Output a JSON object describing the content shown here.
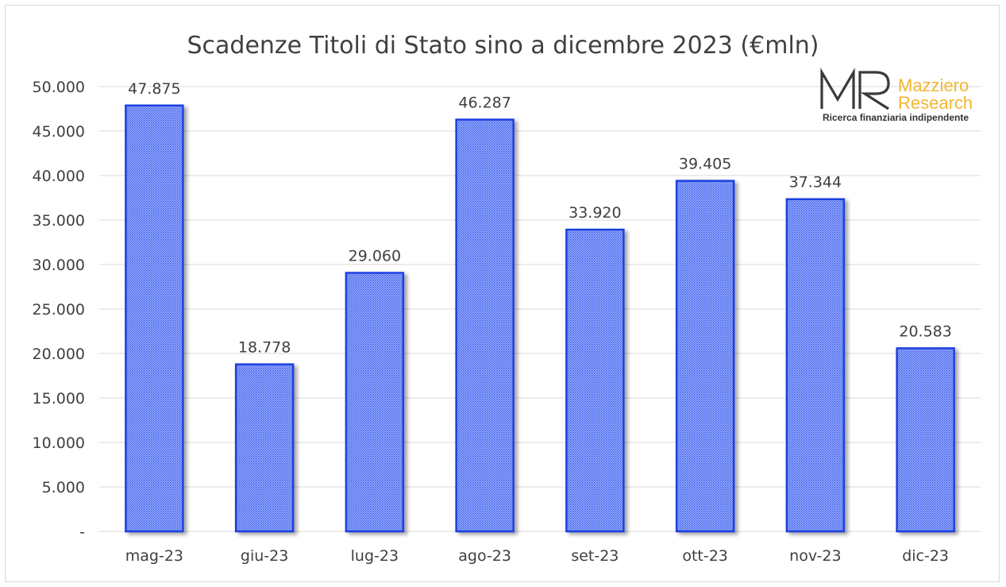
{
  "chart_data": {
    "type": "bar",
    "title": "Scadenze Titoli di Stato sino a dicembre 2023 (€mln)",
    "categories": [
      "mag-23",
      "giu-23",
      "lug-23",
      "ago-23",
      "set-23",
      "ott-23",
      "nov-23",
      "dic-23"
    ],
    "values": [
      47875,
      18778,
      29060,
      46287,
      33920,
      39405,
      37344,
      20583
    ],
    "value_labels": [
      "47.875",
      "18.778",
      "29.060",
      "46.287",
      "33.920",
      "39.405",
      "37.344",
      "20.583"
    ],
    "ylim": [
      0,
      50000
    ],
    "yticks": [
      0,
      5000,
      10000,
      15000,
      20000,
      25000,
      30000,
      35000,
      40000,
      45000,
      50000
    ],
    "ytick_labels": [
      "-",
      "5.000",
      "10.000",
      "15.000",
      "20.000",
      "25.000",
      "30.000",
      "35.000",
      "40.000",
      "45.000",
      "50.000"
    ],
    "xlabel": "",
    "ylabel": "",
    "grid": true,
    "legend": "none",
    "colors": {
      "bar_fill": "#8ea4f5",
      "bar_pattern": "#3a5bf0",
      "bar_edge": "#1f3fe0",
      "grid": "#d9d9d9",
      "text": "#404040"
    }
  },
  "logo": {
    "mark": "MR",
    "name_line1": "Mazziero",
    "name_line2": "Research",
    "tagline": "Ricerca finanziaria indipendente",
    "colors": {
      "mark": "#3a3a3a",
      "name": "#f2b632"
    }
  }
}
